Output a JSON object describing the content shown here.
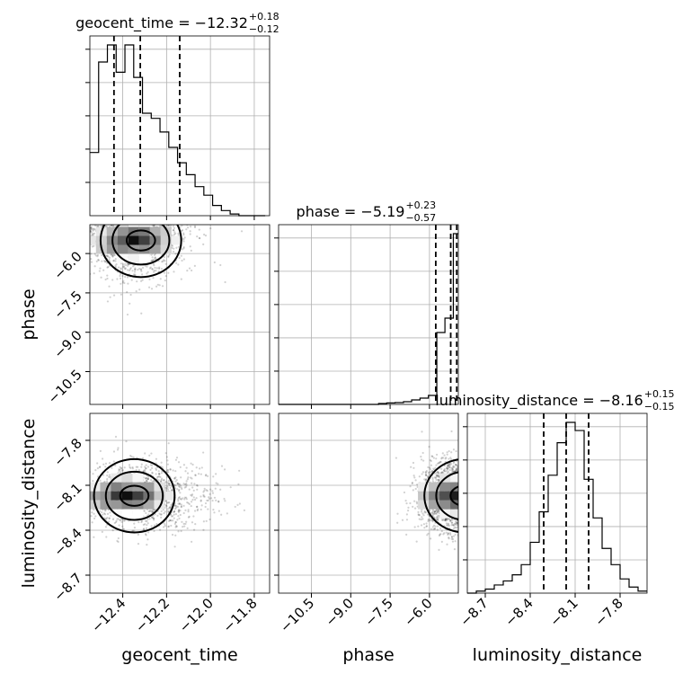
{
  "chart_data": {
    "type": "corner",
    "parameters": [
      "geocent_time",
      "phase",
      "luminosity_distance"
    ],
    "titles": [
      {
        "name": "geocent_time",
        "text": "geocent_time = −12.32",
        "sup": "+0.18",
        "sub": "−0.12"
      },
      {
        "name": "phase",
        "text": "phase = −5.19",
        "sup": "+0.23",
        "sub": "−0.57"
      },
      {
        "name": "luminosity_distance",
        "text": "luminosity_distance = −8.16",
        "sup": "+0.15",
        "sub": "−0.15"
      }
    ],
    "axis_labels": {
      "x": [
        "geocent_time",
        "phase",
        "luminosity_distance"
      ],
      "y": [
        "phase",
        "luminosity_distance"
      ]
    },
    "ranges": {
      "geocent_time": [
        -12.55,
        -11.73
      ],
      "phase": [
        -11.75,
        -4.9
      ],
      "luminosity_distance": [
        -8.82,
        -7.62
      ]
    },
    "ticks": {
      "geocent_time": [
        -12.4,
        -12.2,
        -12.0,
        -11.8
      ],
      "phase": [
        -10.5,
        -9.0,
        -7.5,
        -6.0
      ],
      "luminosity_distance": [
        -8.7,
        -8.4,
        -8.1,
        -7.8
      ]
    },
    "tick_labels": {
      "geocent_time": [
        "−12.4",
        "−12.2",
        "−12.0",
        "−11.8"
      ],
      "phase": [
        "−10.5",
        "−9.0",
        "−7.5",
        "−6.0"
      ],
      "luminosity_distance": [
        "−8.7",
        "−8.4",
        "−8.1",
        "−7.8"
      ]
    },
    "quantiles": {
      "geocent_time": [
        -12.44,
        -12.32,
        -12.14
      ],
      "phase": [
        -5.76,
        -5.19,
        -4.96
      ],
      "luminosity_distance": [
        -8.31,
        -8.16,
        -8.01
      ]
    },
    "histograms": {
      "geocent_time": {
        "edges": [
          -12.55,
          -12.51,
          -12.47,
          -12.43,
          -12.39,
          -12.35,
          -12.31,
          -12.27,
          -12.23,
          -12.19,
          -12.15,
          -12.11,
          -12.07,
          -12.03,
          -11.99,
          -11.95,
          -11.91,
          -11.87,
          -11.83,
          -11.79,
          -11.75
        ],
        "counts": [
          37,
          90,
          100,
          84,
          100,
          81,
          60,
          57,
          49,
          40,
          31,
          24,
          17,
          12,
          6,
          3,
          1,
          0,
          0,
          0
        ]
      },
      "phase": {
        "edges": [
          -11.75,
          -11.43,
          -11.12,
          -10.8,
          -10.48,
          -10.16,
          -9.85,
          -9.53,
          -9.21,
          -8.9,
          -8.58,
          -8.26,
          -7.94,
          -7.63,
          -7.31,
          -6.99,
          -6.68,
          -6.36,
          -6.04,
          -5.72,
          -5.41,
          -5.09,
          -4.9
        ],
        "counts": [
          0,
          0,
          0,
          0,
          0,
          0,
          0,
          0,
          0,
          0,
          0,
          0,
          0.5,
          0.8,
          1,
          1.5,
          2.5,
          3.5,
          5,
          40,
          48,
          95
        ]
      },
      "luminosity_distance": {
        "edges": [
          -8.82,
          -8.76,
          -8.7,
          -8.64,
          -8.58,
          -8.52,
          -8.46,
          -8.4,
          -8.34,
          -8.28,
          -8.22,
          -8.16,
          -8.1,
          -8.04,
          -7.98,
          -7.92,
          -7.86,
          -7.8,
          -7.74,
          -7.68,
          -7.62
        ],
        "counts": [
          0,
          1,
          2,
          4,
          6,
          9,
          14,
          25,
          40,
          58,
          74,
          84,
          80,
          56,
          37,
          22,
          14,
          7,
          3,
          1
        ]
      }
    },
    "density_2d": [
      {
        "x": "geocent_time",
        "y": "phase",
        "cx": -12.35,
        "cy": -5.5,
        "sx": 0.1,
        "sy": 0.35
      },
      {
        "x": "geocent_time",
        "y": "luminosity_distance",
        "cx": -12.38,
        "cy": -8.17,
        "sx": 0.09,
        "sy": 0.1
      },
      {
        "x": "phase",
        "y": "luminosity_distance",
        "cx": -5.0,
        "cy": -8.17,
        "sx": 0.3,
        "sy": 0.1
      }
    ]
  }
}
